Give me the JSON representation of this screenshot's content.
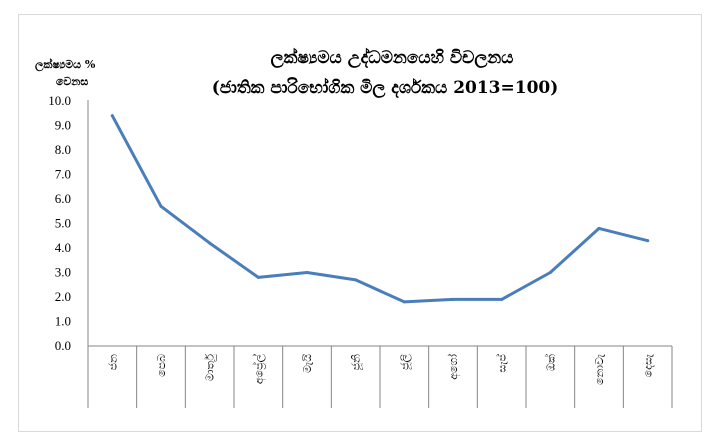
{
  "chart_data": {
    "type": "line",
    "title_lines": [
      "ලක්ෂ්‍යමය උද්ධමනයෙහි විචලනය",
      "(ජාතික පාරිභෝගික මිල දර්ශකය 2013=100)"
    ],
    "ylabel_lines": [
      "ලක්ෂ්‍යමය %",
      "වෙනස"
    ],
    "categories": [
      "ජන",
      "පෙබ",
      "මාර්තු",
      "අප්‍රේල්",
      "මැයි",
      "ජූනි",
      "ජූලි",
      "අගෝ",
      "සැප්",
      "ඔක්",
      "නොවැ",
      "දෙසැ"
    ],
    "values": [
      9.4,
      5.7,
      4.2,
      2.8,
      3.0,
      2.7,
      1.8,
      1.9,
      1.9,
      3.0,
      4.8,
      4.3
    ],
    "yticks": [
      "0.0",
      "1.0",
      "2.0",
      "3.0",
      "4.0",
      "5.0",
      "6.0",
      "7.0",
      "8.0",
      "9.0",
      "10.0"
    ],
    "ylim": [
      0,
      10
    ],
    "grid": false,
    "line_color": "#4a7ebb"
  }
}
